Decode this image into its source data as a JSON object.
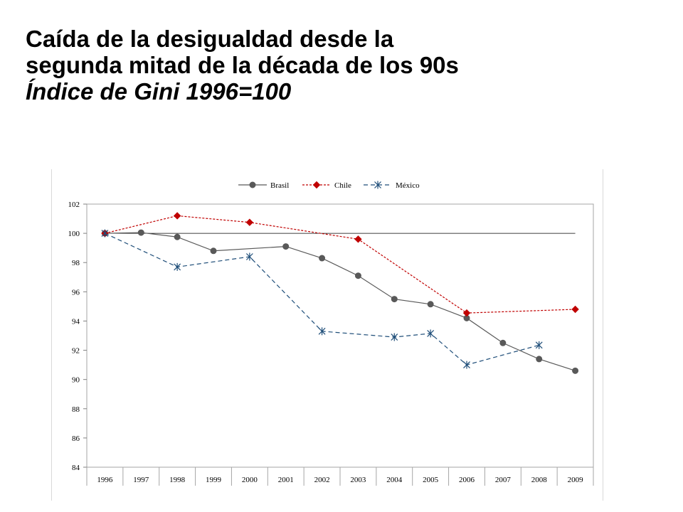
{
  "slide": {
    "title_line1": "Caída de la desigualdad desde la",
    "title_line2": "segunda mitad de la década de los 90s",
    "subtitle": "Índice de Gini 1996=100"
  },
  "chart_data": {
    "type": "line",
    "categories": [
      "1996",
      "1997",
      "1998",
      "1999",
      "2000",
      "2001",
      "2002",
      "2003",
      "2004",
      "2005",
      "2006",
      "2007",
      "2008",
      "2009"
    ],
    "ylim": [
      84,
      102
    ],
    "yticks": [
      84,
      86,
      88,
      90,
      92,
      94,
      96,
      98,
      100,
      102
    ],
    "ytick_labels": [
      "84",
      "86",
      "88",
      "90",
      "92",
      "94",
      "96",
      "98",
      "100",
      "102"
    ],
    "reference_line": 100,
    "legend_position": "top",
    "grid": false,
    "series": [
      {
        "name": "Brasil",
        "color": "#595959",
        "marker": "circle",
        "dash": "solid",
        "points": [
          {
            "x": "1996",
            "y": 100.0
          },
          {
            "x": "1997",
            "y": 100.05
          },
          {
            "x": "1998",
            "y": 99.75
          },
          {
            "x": "1999",
            "y": 98.8
          },
          {
            "x": "2001",
            "y": 99.1
          },
          {
            "x": "2002",
            "y": 98.3
          },
          {
            "x": "2003",
            "y": 97.1
          },
          {
            "x": "2004",
            "y": 95.5
          },
          {
            "x": "2005",
            "y": 95.15
          },
          {
            "x": "2006",
            "y": 94.2
          },
          {
            "x": "2007",
            "y": 92.5
          },
          {
            "x": "2008",
            "y": 91.4
          },
          {
            "x": "2009",
            "y": 90.6
          }
        ]
      },
      {
        "name": "Chile",
        "color": "#c00000",
        "marker": "diamond",
        "dash": "dotted",
        "points": [
          {
            "x": "1996",
            "y": 100.0
          },
          {
            "x": "1998",
            "y": 101.2
          },
          {
            "x": "2000",
            "y": 100.75
          },
          {
            "x": "2003",
            "y": 99.6
          },
          {
            "x": "2006",
            "y": 94.55
          },
          {
            "x": "2009",
            "y": 94.8
          }
        ]
      },
      {
        "name": "México",
        "color": "#1f4e79",
        "marker": "asterisk",
        "dash": "dashed",
        "points": [
          {
            "x": "1996",
            "y": 100.0
          },
          {
            "x": "1998",
            "y": 97.7
          },
          {
            "x": "2000",
            "y": 98.4
          },
          {
            "x": "2002",
            "y": 93.3
          },
          {
            "x": "2004",
            "y": 92.9
          },
          {
            "x": "2005",
            "y": 93.15
          },
          {
            "x": "2006",
            "y": 91.0
          },
          {
            "x": "2008",
            "y": 92.35
          }
        ]
      }
    ]
  }
}
